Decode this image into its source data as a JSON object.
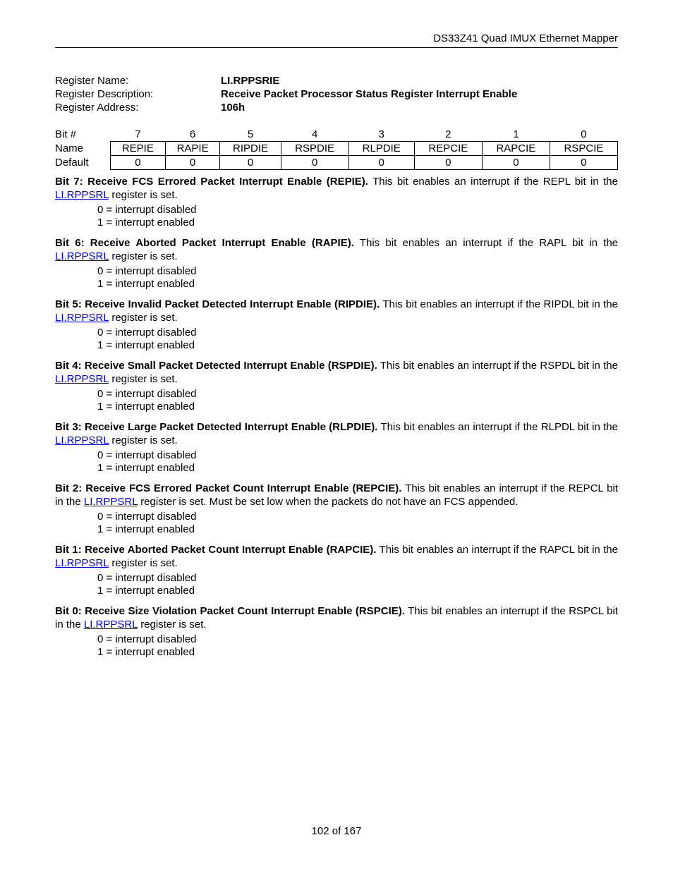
{
  "header": {
    "doc_title": "DS33Z41 Quad IMUX Ethernet Mapper"
  },
  "register": {
    "name_label": "Register Name:",
    "name_value": "LI.RPPSRIE",
    "desc_label": "Register Description:",
    "desc_value": "Receive Packet Processor Status Register Interrupt Enable",
    "addr_label": "Register Address:",
    "addr_value": "106h"
  },
  "bit_table": {
    "row_labels": {
      "bit": "Bit #",
      "name": "Name",
      "default": "Default"
    },
    "bit_numbers": [
      "7",
      "6",
      "5",
      "4",
      "3",
      "2",
      "1",
      "0"
    ],
    "names": [
      "REPIE",
      "RAPIE",
      "RIPDIE",
      "RSPDIE",
      "RLPDIE",
      "REPCIE",
      "RAPCIE",
      "RSPCIE"
    ],
    "defaults": [
      "0",
      "0",
      "0",
      "0",
      "0",
      "0",
      "0",
      "0"
    ]
  },
  "link_text": "LI.RPPSRL",
  "value_lines": {
    "line0": "0 = interrupt disabled",
    "line1": "1 = interrupt enabled"
  },
  "descs": {
    "b7": {
      "title": "Bit 7: Receive FCS Errored Packet Interrupt Enable (REPIE).",
      "body_pre": " This bit enables an interrupt if the REPL bit in the ",
      "body_post": " register is set."
    },
    "b6": {
      "title": "Bit 6: Receive Aborted Packet Interrupt Enable (RAPIE).",
      "body_pre": " This bit enables an interrupt if the RAPL bit in the ",
      "body_post": " register is set."
    },
    "b5": {
      "title": "Bit 5: Receive Invalid Packet Detected Interrupt Enable (RIPDIE).",
      "body_pre": " This bit enables an interrupt if the RIPDL bit in the ",
      "body_post": " register is set."
    },
    "b4": {
      "title": "Bit 4: Receive Small Packet Detected Interrupt Enable (RSPDIE).",
      "body_pre": " This bit enables an interrupt if the RSPDL bit in the ",
      "body_post": " register is set."
    },
    "b3": {
      "title": "Bit 3: Receive Large Packet Detected Interrupt Enable (RLPDIE).",
      "body_pre": " This bit enables an interrupt if the RLPDL bit in the ",
      "body_post": " register is set."
    },
    "b2": {
      "title": "Bit 2: Receive FCS Errored Packet Count Interrupt Enable (REPCIE).",
      "body_pre": " This bit enables an interrupt if the REPCL bit in the ",
      "body_post": " register is set. Must be set low when the packets do not have an FCS appended."
    },
    "b1": {
      "title": "Bit 1: Receive Aborted Packet Count Interrupt Enable (RAPCIE).",
      "body_pre": " This bit enables an interrupt if the RAPCL bit in the ",
      "body_post": " register is set."
    },
    "b0": {
      "title": "Bit 0: Receive Size Violation Packet Count Interrupt Enable (RSPCIE).",
      "body_pre": " This bit enables an interrupt if the RSPCL bit in the ",
      "body_post": " register is set."
    }
  },
  "footer": {
    "page_num": "102 of 167"
  }
}
